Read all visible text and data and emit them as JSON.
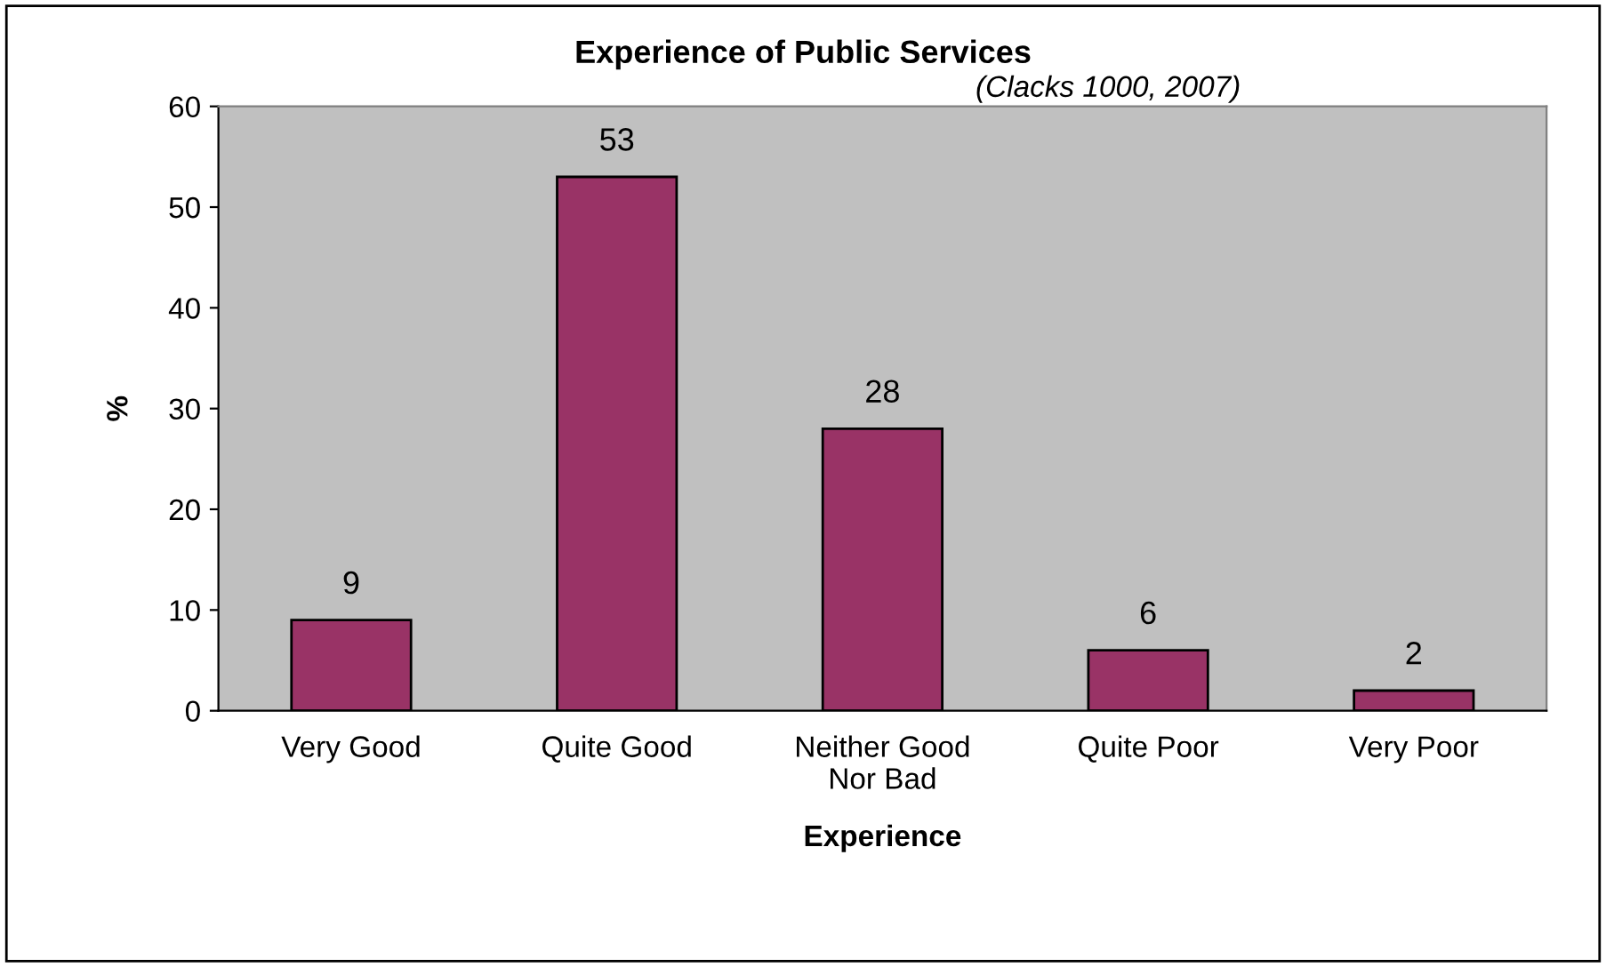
{
  "chart_data": {
    "type": "bar",
    "title": "Experience of Public Services",
    "subtitle": "(Clacks 1000, 2007)",
    "xlabel": "Experience",
    "ylabel": "%",
    "categories": [
      "Very Good",
      "Quite Good",
      "Neither Good\nNor Bad",
      "Quite Poor",
      "Very Poor"
    ],
    "values": [
      9,
      53,
      28,
      6,
      2
    ],
    "color": "#993366",
    "ylim": [
      0,
      60
    ],
    "yticks": [
      0,
      10,
      20,
      30,
      40,
      50,
      60
    ],
    "grid": false,
    "legend": false,
    "data_labels": true
  }
}
